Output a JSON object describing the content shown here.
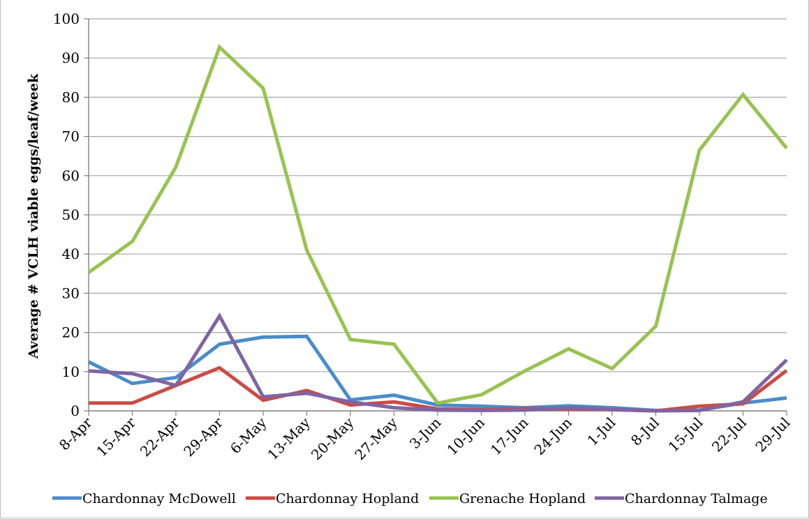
{
  "chart_data": {
    "type": "line",
    "title": "",
    "xlabel": "",
    "ylabel": "Average # VCLH viable eggs/leaf/week",
    "ylim": [
      0,
      100
    ],
    "yticks": [
      0,
      10,
      20,
      30,
      40,
      50,
      60,
      70,
      80,
      90,
      100
    ],
    "grid": true,
    "legend_position": "bottom",
    "categories": [
      "8-Apr",
      "15-Apr",
      "22-Apr",
      "29-Apr",
      "6-May",
      "13-May",
      "20-May",
      "27-May",
      "3-Jun",
      "10-Jun",
      "17-Jun",
      "24-Jun",
      "1-Jul",
      "8-Jul",
      "15-Jul",
      "22-Jul",
      "29-Jul"
    ],
    "series": [
      {
        "name": "Chardonnay McDowell",
        "color": "#4a8ccb",
        "values": [
          12.5,
          7,
          8.5,
          17,
          18.8,
          19,
          2.8,
          4,
          1.5,
          1.2,
          0.8,
          1.3,
          0.8,
          0.1,
          0.2,
          2,
          3.3
        ]
      },
      {
        "name": "Chardonnay Hopland",
        "color": "#cc4b43",
        "values": [
          2,
          2,
          6.5,
          11,
          2.7,
          5.2,
          1.5,
          2.3,
          0.5,
          0.3,
          0.6,
          0.5,
          0.3,
          0,
          1.2,
          1.8,
          10.3
        ]
      },
      {
        "name": "Grenache Hopland",
        "color": "#98c34f",
        "values": [
          35.3,
          43.2,
          62.2,
          92.8,
          82.3,
          41,
          18.2,
          17,
          2,
          4.1,
          10.2,
          15.8,
          10.8,
          21.6,
          66.5,
          80.7,
          67
        ]
      },
      {
        "name": "Chardonnay Talmage",
        "color": "#8064a2",
        "values": [
          10.2,
          9.5,
          6.5,
          24.2,
          3.6,
          4.5,
          2.3,
          0.8,
          0.2,
          0.1,
          0.2,
          0.8,
          0.3,
          0,
          0.1,
          2.3,
          13
        ]
      }
    ]
  }
}
